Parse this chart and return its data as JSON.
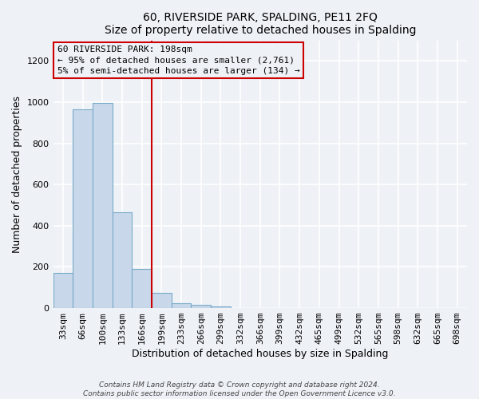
{
  "title": "60, RIVERSIDE PARK, SPALDING, PE11 2FQ",
  "subtitle": "Size of property relative to detached houses in Spalding",
  "xlabel": "Distribution of detached houses by size in Spalding",
  "ylabel": "Number of detached properties",
  "bin_labels": [
    "33sqm",
    "66sqm",
    "100sqm",
    "133sqm",
    "166sqm",
    "199sqm",
    "233sqm",
    "266sqm",
    "299sqm",
    "332sqm",
    "366sqm",
    "399sqm",
    "432sqm",
    "465sqm",
    "499sqm",
    "532sqm",
    "565sqm",
    "598sqm",
    "632sqm",
    "665sqm",
    "698sqm"
  ],
  "bar_values": [
    170,
    965,
    995,
    465,
    190,
    75,
    25,
    15,
    10,
    0,
    0,
    0,
    0,
    0,
    0,
    0,
    0,
    0,
    0,
    0,
    0
  ],
  "bar_color": "#c8d8ea",
  "bar_edge_color": "#7aaan0",
  "property_line_color": "#cc0000",
  "annotation_line1": "60 RIVERSIDE PARK: 198sqm",
  "annotation_line2": "← 95% of detached houses are smaller (2,761)",
  "annotation_line3": "5% of semi-detached houses are larger (134) →",
  "annotation_box_color": "#cc0000",
  "ylim": [
    0,
    1300
  ],
  "yticks": [
    0,
    200,
    400,
    600,
    800,
    1000,
    1200
  ],
  "footer_line1": "Contains HM Land Registry data © Crown copyright and database right 2024.",
  "footer_line2": "Contains public sector information licensed under the Open Government Licence v3.0.",
  "background_color": "#eef2f7",
  "grid_color": "#ffffff"
}
